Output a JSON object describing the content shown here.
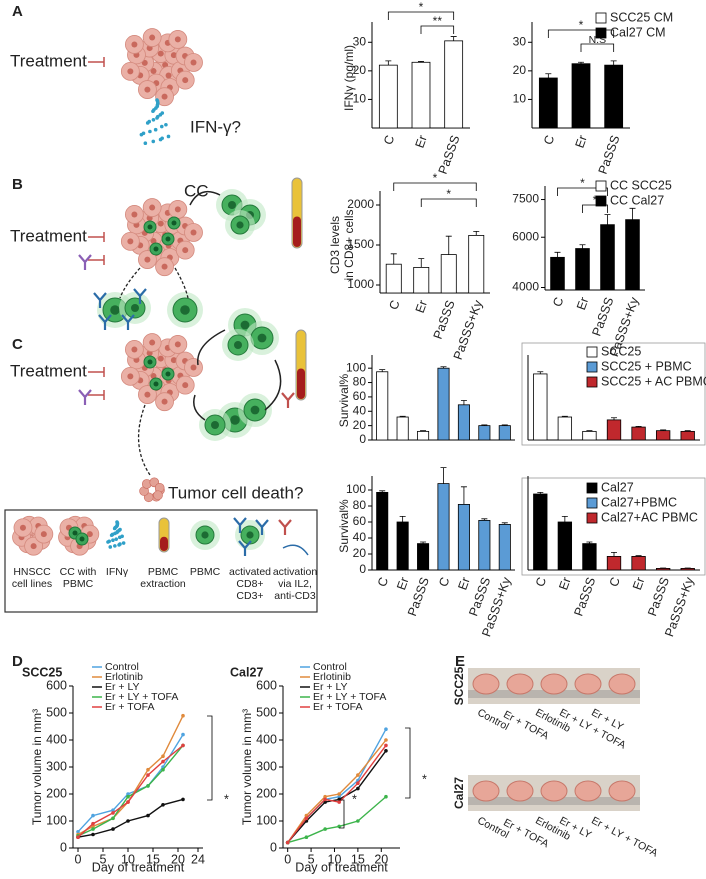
{
  "panel_labels": [
    "A",
    "B",
    "C",
    "D",
    "E"
  ],
  "schematic": {
    "treatment": [
      "Treatment",
      "Treatment",
      "Treatment"
    ],
    "ifn": "IFN-γ?",
    "cc": "CC",
    "death": "Tumor cell death?"
  },
  "legend_box": [
    [
      "HNSCC",
      "cell lines"
    ],
    [
      "CC with",
      "PBMC"
    ],
    [
      "IFNγ"
    ],
    [
      "PBMC",
      "extraction"
    ],
    [
      "PBMC"
    ],
    [
      "activated",
      "CD8+",
      "CD3+"
    ],
    [
      "activation",
      "via IL2,",
      "anti-CD3"
    ]
  ],
  "photos": {
    "scc25": {
      "label": "SCC25",
      "groups": [
        "Control",
        "Er + TOFA",
        "Erlotinib",
        "Er + LY + TOFA",
        "Er + LY"
      ]
    },
    "cal27": {
      "label": "Cal27",
      "groups": [
        "Control",
        "Er + TOFA",
        "Erlotinib",
        "Er + LY",
        "Er + LY + TOFA"
      ]
    }
  },
  "chart_data": [
    {
      "type": "bar",
      "ylabel": "IFNγ (pg/ml)",
      "categories": [
        "C",
        "Er",
        "PaSSS"
      ],
      "series": [
        {
          "name": "SCC25 CM",
          "color": "white",
          "values": [
            22,
            23,
            30.5
          ],
          "errors": [
            1.5,
            0.3,
            1.5
          ]
        }
      ],
      "ylim": [
        0,
        35
      ],
      "yticks": [
        10,
        20,
        30
      ],
      "annotations": [
        "*",
        "**"
      ]
    },
    {
      "type": "bar",
      "categories": [
        "C",
        "Er",
        "PaSSS"
      ],
      "series": [
        {
          "name": "Cal27 CM",
          "color": "black",
          "values": [
            17.5,
            22.5,
            22
          ],
          "errors": [
            1.5,
            0.5,
            1.5
          ]
        }
      ],
      "ylim": [
        0,
        35
      ],
      "yticks": [
        10,
        20,
        30
      ],
      "annotations": [
        "*",
        "N.S"
      ]
    },
    {
      "type": "bar",
      "ylabel": [
        "CD3 levels",
        "in CD8+ cells"
      ],
      "categories": [
        "C",
        "Er",
        "PaSSS",
        "PaSSS+Ky"
      ],
      "series": [
        {
          "name": "CC SCC25",
          "color": "white",
          "values": [
            1260,
            1220,
            1380,
            1620
          ],
          "errors": [
            130,
            110,
            230,
            50
          ]
        }
      ],
      "ylim": [
        900,
        2100
      ],
      "yticks": [
        1000,
        1500,
        2000
      ],
      "annotations": [
        "*",
        "*"
      ]
    },
    {
      "type": "bar",
      "categories": [
        "C",
        "Er",
        "PaSSS",
        "PaSSS+Ky"
      ],
      "series": [
        {
          "name": "CC Cal27",
          "color": "black",
          "values": [
            5200,
            5550,
            6500,
            6700
          ],
          "errors": [
            200,
            150,
            400,
            450
          ]
        }
      ],
      "ylim": [
        3900,
        7800
      ],
      "yticks": [
        4000,
        6000,
        7500
      ],
      "annotations": [
        "*",
        "*"
      ]
    },
    {
      "type": "bar",
      "ylabel": "Survival%",
      "series": [
        {
          "name": "SCC25",
          "color": "white",
          "values": [
            95,
            32,
            12,
            null,
            null,
            null,
            null
          ],
          "errors": [
            3,
            1,
            1,
            null,
            null,
            null,
            null
          ]
        },
        {
          "name": "SCC25 + PBMC",
          "color": "#5b9bd5",
          "values": [
            null,
            null,
            null,
            100,
            49,
            20,
            20
          ],
          "errors": [
            null,
            null,
            null,
            2,
            6,
            1,
            1
          ]
        }
      ],
      "ylim": [
        0,
        110
      ],
      "yticks": [
        0,
        20,
        40,
        60,
        80,
        100
      ]
    },
    {
      "type": "bar",
      "series": [
        {
          "color": "white",
          "values": [
            92,
            32,
            12,
            null,
            null,
            null,
            null
          ],
          "errors": [
            3,
            1,
            1,
            null,
            null,
            null,
            null
          ]
        },
        {
          "name": "SCC25 + AC PBMC",
          "color": "#c0282d",
          "values": [
            null,
            null,
            null,
            28,
            18,
            13,
            12
          ],
          "errors": [
            null,
            null,
            null,
            3,
            1,
            1,
            1
          ]
        }
      ],
      "ylim": [
        0,
        110
      ]
    },
    {
      "type": "bar",
      "ylabel": "Survival%",
      "categories": [
        "C",
        "Er",
        "PaSSS",
        "C",
        "Er",
        "PaSSS",
        "PaSSS+Ky"
      ],
      "series": [
        {
          "name": "Cal27",
          "color": "black",
          "values": [
            97,
            60,
            33,
            null,
            null,
            null,
            null
          ],
          "errors": [
            2,
            7,
            2,
            null,
            null,
            null,
            null
          ]
        },
        {
          "name": "Cal27+PBMC",
          "color": "#5b9bd5",
          "values": [
            null,
            null,
            null,
            108,
            82,
            62,
            57
          ],
          "errors": [
            null,
            null,
            null,
            20,
            22,
            2,
            2
          ]
        }
      ],
      "ylim": [
        0,
        110
      ],
      "yticks": [
        0,
        20,
        40,
        60,
        80,
        100
      ]
    },
    {
      "type": "bar",
      "categories": [
        "C",
        "Er",
        "PaSSS",
        "C",
        "Er",
        "PaSSS",
        "PaSSS+Ky"
      ],
      "series": [
        {
          "color": "black",
          "values": [
            95,
            60,
            33,
            null,
            null,
            null,
            null
          ],
          "errors": [
            2,
            7,
            2,
            null,
            null,
            null,
            null
          ]
        },
        {
          "name": "Cal27+AC PBMC",
          "color": "#c0282d",
          "values": [
            null,
            null,
            null,
            17,
            17,
            2,
            2
          ],
          "errors": [
            null,
            null,
            null,
            5,
            1,
            0.5,
            0.5
          ]
        }
      ],
      "ylim": [
        0,
        110
      ]
    },
    {
      "type": "line",
      "title": "SCC25",
      "xlabel": "Day of treatment",
      "ylabel": "Tumor volume in mm³",
      "x": [
        0,
        3,
        7,
        10,
        14,
        17,
        21
      ],
      "xlim": [
        -1,
        25
      ],
      "xticks": [
        0,
        5,
        10,
        15,
        20,
        24
      ],
      "ylim": [
        0,
        600
      ],
      "yticks": [
        0,
        100,
        200,
        300,
        400,
        500,
        600
      ],
      "series": [
        {
          "name": "Control",
          "color": "#4fa3e0",
          "values": [
            60,
            120,
            140,
            200,
            230,
            300,
            420
          ]
        },
        {
          "name": "Erlotinib",
          "color": "#e08a3c",
          "values": [
            50,
            80,
            110,
            170,
            290,
            340,
            490
          ]
        },
        {
          "name": "Er + LY",
          "color": "#111111",
          "values": [
            40,
            50,
            70,
            100,
            120,
            160,
            180
          ]
        },
        {
          "name": "Er + LY + TOFA",
          "color": "#3cb44b",
          "values": [
            45,
            70,
            110,
            190,
            230,
            290,
            380
          ]
        },
        {
          "name": "Er + TOFA",
          "color": "#e04040",
          "values": [
            40,
            90,
            130,
            170,
            270,
            320,
            380
          ]
        }
      ],
      "annotations": [
        "*"
      ]
    },
    {
      "type": "line",
      "title": "Cal27",
      "xlabel": "Day of treatment",
      "ylabel": "Tumor volume in mm³",
      "x": [
        0,
        4,
        8,
        11,
        15,
        21
      ],
      "xlim": [
        -1,
        24
      ],
      "xticks": [
        0,
        5,
        10,
        15,
        20
      ],
      "ylim": [
        0,
        600
      ],
      "yticks": [
        0,
        100,
        200,
        300,
        400,
        500,
        600
      ],
      "series": [
        {
          "name": "Control",
          "color": "#4fa3e0",
          "values": [
            20,
            110,
            180,
            190,
            250,
            440
          ]
        },
        {
          "name": "Erlotinib",
          "color": "#e08a3c",
          "values": [
            20,
            120,
            190,
            200,
            270,
            400
          ]
        },
        {
          "name": "Er + LY",
          "color": "#111111",
          "values": [
            20,
            100,
            170,
            180,
            220,
            360
          ]
        },
        {
          "name": "Er + LY + TOFA",
          "color": "#3cb44b",
          "values": [
            20,
            40,
            70,
            80,
            100,
            190
          ]
        },
        {
          "name": "Er + TOFA",
          "color": "#e04040",
          "values": [
            20,
            110,
            180,
            170,
            240,
            380
          ]
        }
      ],
      "annotations": [
        "*",
        "*"
      ]
    }
  ]
}
